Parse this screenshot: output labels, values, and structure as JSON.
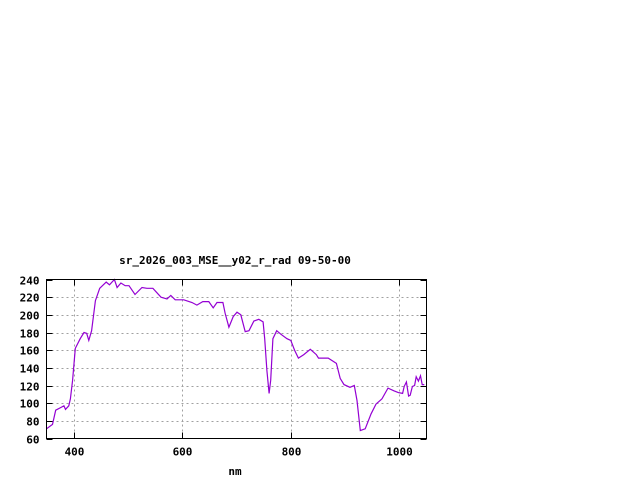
{
  "chart_data": {
    "type": "line",
    "title": "sr_2026_003_MSE__y02_r_rad 09-50-00",
    "xlabel": "nm",
    "ylabel": "",
    "xlim": [
      350,
      1050
    ],
    "ylim": [
      60,
      240
    ],
    "xticks": [
      400,
      600,
      800,
      1000
    ],
    "yticks": [
      60,
      80,
      100,
      120,
      140,
      160,
      180,
      200,
      220,
      240
    ],
    "grid": true,
    "line_color": "#9400D3",
    "series": [
      {
        "x": [
          350,
          361,
          367,
          376,
          382,
          385,
          391,
          394,
          398,
          403,
          412,
          419,
          424,
          428,
          433,
          440,
          448,
          460,
          466,
          475,
          480,
          487,
          495,
          502,
          513,
          526,
          535,
          546,
          561,
          572,
          579,
          587,
          603,
          618,
          627,
          638,
          649,
          657,
          664,
          675,
          679,
          686,
          694,
          701,
          708,
          716,
          723,
          732,
          741,
          749,
          752,
          756,
          760,
          763,
          767,
          774,
          782,
          793,
          800,
          807,
          814,
          824,
          836,
          847,
          851,
          869,
          884,
          891,
          898,
          909,
          917,
          922,
          928,
          937,
          948,
          957,
          968,
          979,
          990,
          998,
          1006,
          1009,
          1013,
          1017,
          1020,
          1024,
          1028,
          1031,
          1035,
          1039,
          1042,
          1046
        ],
        "y": [
          71,
          76,
          92,
          95,
          97,
          93,
          97,
          105,
          126,
          162,
          173,
          180,
          179,
          171,
          182,
          216,
          230,
          237,
          234,
          240,
          231,
          236,
          233,
          233,
          223,
          231,
          230,
          230,
          220,
          218,
          222,
          217,
          217,
          214,
          211,
          215,
          215,
          208,
          214,
          214,
          202,
          186,
          198,
          203,
          200,
          181,
          182,
          193,
          195,
          192,
          173,
          137,
          111,
          126,
          173,
          182,
          178,
          173,
          171,
          160,
          151,
          155,
          161,
          155,
          151,
          151,
          145,
          128,
          121,
          118,
          120,
          103,
          69,
          71,
          88,
          99,
          105,
          117,
          114,
          112,
          111,
          119,
          124,
          108,
          109,
          119,
          120,
          130,
          125,
          131,
          121,
          121
        ]
      }
    ]
  }
}
